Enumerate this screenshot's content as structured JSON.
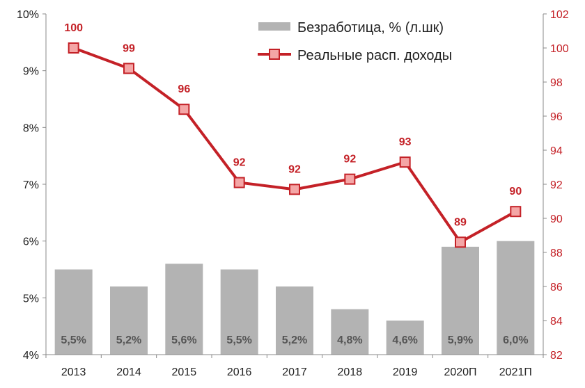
{
  "chart_data": {
    "type": "bar",
    "categories": [
      "2013",
      "2014",
      "2015",
      "2016",
      "2017",
      "2018",
      "2019",
      "2020П",
      "2021П"
    ],
    "series": [
      {
        "name": "Безработица, % (л.шк)",
        "type": "bar",
        "axis": "left",
        "values": [
          5.5,
          5.2,
          5.6,
          5.5,
          5.2,
          4.8,
          4.6,
          5.9,
          6.0
        ],
        "labels": [
          "5,5%",
          "5,2%",
          "5,6%",
          "5,5%",
          "5,2%",
          "4,8%",
          "4,6%",
          "5,9%",
          "6,0%"
        ],
        "color": "#b3b3b3"
      },
      {
        "name": "Реальные расп. доходы",
        "type": "line",
        "axis": "right",
        "values": [
          100,
          98.8,
          96.4,
          92.1,
          91.7,
          92.3,
          93.3,
          88.6,
          90.4
        ],
        "labels": [
          "100",
          "99",
          "96",
          "92",
          "92",
          "92",
          "93",
          "89",
          "90"
        ],
        "color": "#c42127",
        "marker_fill": "#f4a6a6"
      }
    ],
    "left_axis": {
      "ylim": [
        4,
        10
      ],
      "ticks": [
        4,
        5,
        6,
        7,
        8,
        9,
        10
      ],
      "tick_labels": [
        "4%",
        "5%",
        "6%",
        "7%",
        "8%",
        "9%",
        "10%"
      ]
    },
    "right_axis": {
      "ylim": [
        82,
        102
      ],
      "ticks": [
        82,
        84,
        86,
        88,
        90,
        92,
        94,
        96,
        98,
        100,
        102
      ],
      "tick_labels": [
        "82",
        "84",
        "86",
        "88",
        "90",
        "92",
        "94",
        "96",
        "98",
        "100",
        "102"
      ],
      "color": "#c42127"
    },
    "legend": {
      "position": "top-right",
      "entries": [
        "Безработица, % (л.шк)",
        "Реальные расп. доходы"
      ]
    },
    "grid": false
  }
}
